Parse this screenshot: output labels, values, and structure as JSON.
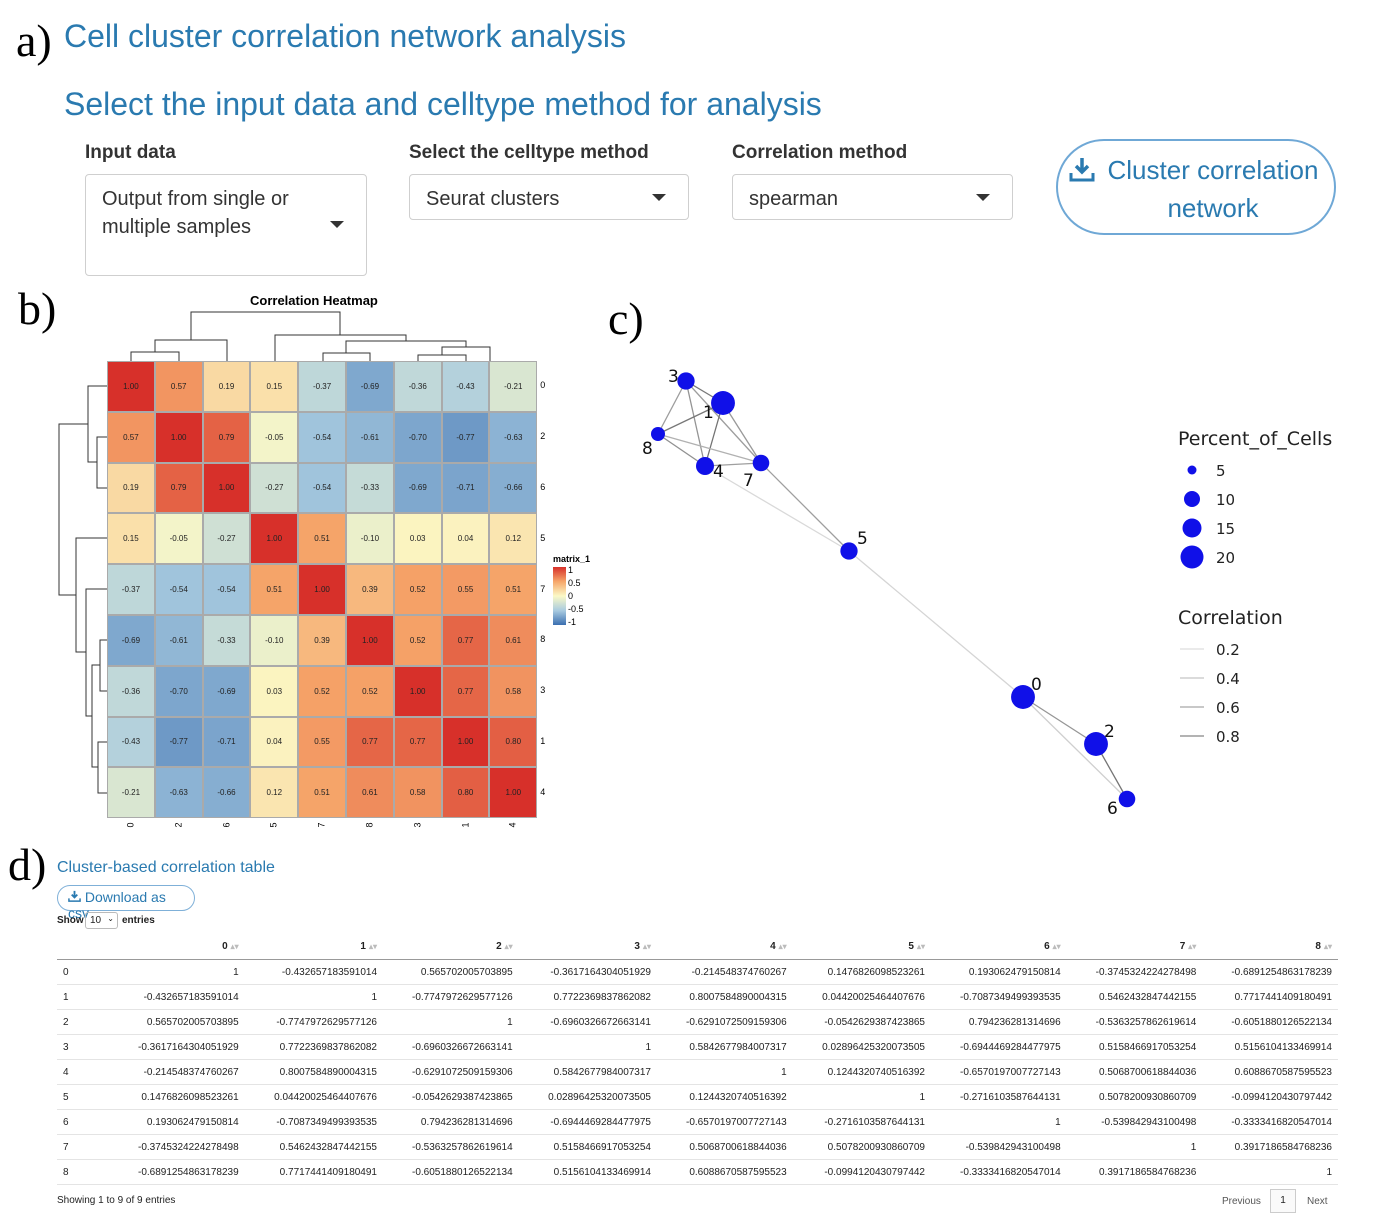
{
  "panels": {
    "a": "a)",
    "b": "b)",
    "c": "c)",
    "d": "d)"
  },
  "header": {
    "title": "Cell cluster correlation network analysis",
    "subtitle": "Select the input data and celltype method for analysis"
  },
  "controls": {
    "input_label": "Input data",
    "input_value": "Output from single or multiple samples",
    "celltype_label": "Select the celltype method",
    "celltype_value": "Seurat clusters",
    "corr_label": "Correlation method",
    "corr_value": "spearman",
    "run_button": "Cluster correlation network",
    "download_icon": "download-icon"
  },
  "heatmap": {
    "title": "Correlation Heatmap",
    "legend_title": "matrix_1",
    "legend_ticks": [
      "1",
      "0.5",
      "0",
      "-0.5",
      "-1"
    ],
    "row_labels": [
      "0",
      "2",
      "6",
      "5",
      "7",
      "8",
      "3",
      "1",
      "4"
    ],
    "col_labels": [
      "0",
      "2",
      "6",
      "5",
      "7",
      "8",
      "3",
      "1",
      "4"
    ],
    "values": [
      [
        "1.00",
        "0.57",
        "0.19",
        "0.15",
        "-0.37",
        "-0.69",
        "-0.36",
        "-0.43",
        "-0.21"
      ],
      [
        "0.57",
        "1.00",
        "0.79",
        "-0.05",
        "-0.54",
        "-0.61",
        "-0.70",
        "-0.77",
        "-0.63"
      ],
      [
        "0.19",
        "0.79",
        "1.00",
        "-0.27",
        "-0.54",
        "-0.33",
        "-0.69",
        "-0.71",
        "-0.66"
      ],
      [
        "0.15",
        "-0.05",
        "-0.27",
        "1.00",
        "0.51",
        "-0.10",
        "0.03",
        "0.04",
        "0.12"
      ],
      [
        "-0.37",
        "-0.54",
        "-0.54",
        "0.51",
        "1.00",
        "0.39",
        "0.52",
        "0.55",
        "0.51"
      ],
      [
        "-0.69",
        "-0.61",
        "-0.33",
        "-0.10",
        "0.39",
        "1.00",
        "0.52",
        "0.77",
        "0.61"
      ],
      [
        "-0.36",
        "-0.70",
        "-0.69",
        "0.03",
        "0.52",
        "0.52",
        "1.00",
        "0.77",
        "0.58"
      ],
      [
        "-0.43",
        "-0.77",
        "-0.71",
        "0.04",
        "0.55",
        "0.77",
        "0.77",
        "1.00",
        "0.80"
      ],
      [
        "-0.21",
        "-0.63",
        "-0.66",
        "0.12",
        "0.51",
        "0.61",
        "0.58",
        "0.80",
        "1.00"
      ]
    ]
  },
  "network": {
    "nodes": [
      {
        "id": "3",
        "pct": 8
      },
      {
        "id": "1",
        "pct": 20
      },
      {
        "id": "8",
        "pct": 4
      },
      {
        "id": "4",
        "pct": 9
      },
      {
        "id": "7",
        "pct": 7
      },
      {
        "id": "5",
        "pct": 8
      },
      {
        "id": "0",
        "pct": 20
      },
      {
        "id": "2",
        "pct": 20
      },
      {
        "id": "6",
        "pct": 7
      }
    ],
    "edges": [
      {
        "a": "3",
        "b": "1",
        "w": 0.77
      },
      {
        "a": "3",
        "b": "8",
        "w": 0.52
      },
      {
        "a": "3",
        "b": "4",
        "w": 0.58
      },
      {
        "a": "3",
        "b": "7",
        "w": 0.52
      },
      {
        "a": "1",
        "b": "8",
        "w": 0.77
      },
      {
        "a": "1",
        "b": "4",
        "w": 0.8
      },
      {
        "a": "1",
        "b": "7",
        "w": 0.55
      },
      {
        "a": "8",
        "b": "4",
        "w": 0.61
      },
      {
        "a": "8",
        "b": "7",
        "w": 0.39
      },
      {
        "a": "4",
        "b": "7",
        "w": 0.51
      },
      {
        "a": "7",
        "b": "5",
        "w": 0.51
      },
      {
        "a": "4",
        "b": "5",
        "w": 0.12
      },
      {
        "a": "5",
        "b": "0",
        "w": 0.15
      },
      {
        "a": "0",
        "b": "2",
        "w": 0.57
      },
      {
        "a": "2",
        "b": "6",
        "w": 0.79
      },
      {
        "a": "0",
        "b": "6",
        "w": 0.19
      }
    ],
    "legend_size_title": "Percent_of_Cells",
    "legend_sizes": [
      "5",
      "10",
      "15",
      "20"
    ],
    "legend_corr_title": "Correlation",
    "legend_corr": [
      "0.2",
      "0.4",
      "0.6",
      "0.8"
    ],
    "node_color": "#1010e8"
  },
  "table": {
    "title": "Cluster-based correlation table",
    "download_label": "Download as csv",
    "show_label": "Show",
    "show_value": "10",
    "entries_label": "entries",
    "columns": [
      "0",
      "1",
      "2",
      "3",
      "4",
      "5",
      "6",
      "7",
      "8"
    ],
    "rows": [
      [
        "0",
        "1",
        "-0.432657183591014",
        "0.565702005703895",
        "-0.3617164304051929",
        "-0.214548374760267",
        "0.1476826098523261",
        "0.193062479150814",
        "-0.3745324224278498",
        "-0.6891254863178239"
      ],
      [
        "1",
        "-0.432657183591014",
        "1",
        "-0.7747972629577126",
        "0.7722369837862082",
        "0.8007584890004315",
        "0.04420025464407676",
        "-0.7087349499393535",
        "0.5462432847442155",
        "0.7717441409180491"
      ],
      [
        "2",
        "0.565702005703895",
        "-0.7747972629577126",
        "1",
        "-0.6960326672663141",
        "-0.6291072509159306",
        "-0.0542629387423865",
        "0.794236281314696",
        "-0.5363257862619614",
        "-0.6051880126522134"
      ],
      [
        "3",
        "-0.3617164304051929",
        "0.7722369837862082",
        "-0.6960326672663141",
        "1",
        "0.5842677984007317",
        "0.02896425320073505",
        "-0.6944469284477975",
        "0.5158466917053254",
        "0.5156104133469914"
      ],
      [
        "4",
        "-0.214548374760267",
        "0.8007584890004315",
        "-0.6291072509159306",
        "0.5842677984007317",
        "1",
        "0.1244320740516392",
        "-0.6570197007727143",
        "0.5068700618844036",
        "0.6088670587595523"
      ],
      [
        "5",
        "0.1476826098523261",
        "0.04420025464407676",
        "-0.0542629387423865",
        "0.02896425320073505",
        "0.1244320740516392",
        "1",
        "-0.2716103587644131",
        "0.5078200930860709",
        "-0.0994120430797442"
      ],
      [
        "6",
        "0.193062479150814",
        "-0.7087349499393535",
        "0.794236281314696",
        "-0.6944469284477975",
        "-0.6570197007727143",
        "-0.2716103587644131",
        "1",
        "-0.539842943100498",
        "-0.3333416820547014"
      ],
      [
        "7",
        "-0.3745324224278498",
        "0.5462432847442155",
        "-0.5363257862619614",
        "0.5158466917053254",
        "0.5068700618844036",
        "0.5078200930860709",
        "-0.539842943100498",
        "1",
        "0.3917186584768236"
      ],
      [
        "8",
        "-0.6891254863178239",
        "0.7717441409180491",
        "-0.6051880126522134",
        "0.5156104133469914",
        "0.6088670587595523",
        "-0.0994120430797442",
        "-0.3333416820547014",
        "0.3917186584768236",
        "1"
      ]
    ],
    "info": "Showing 1 to 9 of 9 entries",
    "prev": "Previous",
    "page": "1",
    "next": "Next"
  }
}
